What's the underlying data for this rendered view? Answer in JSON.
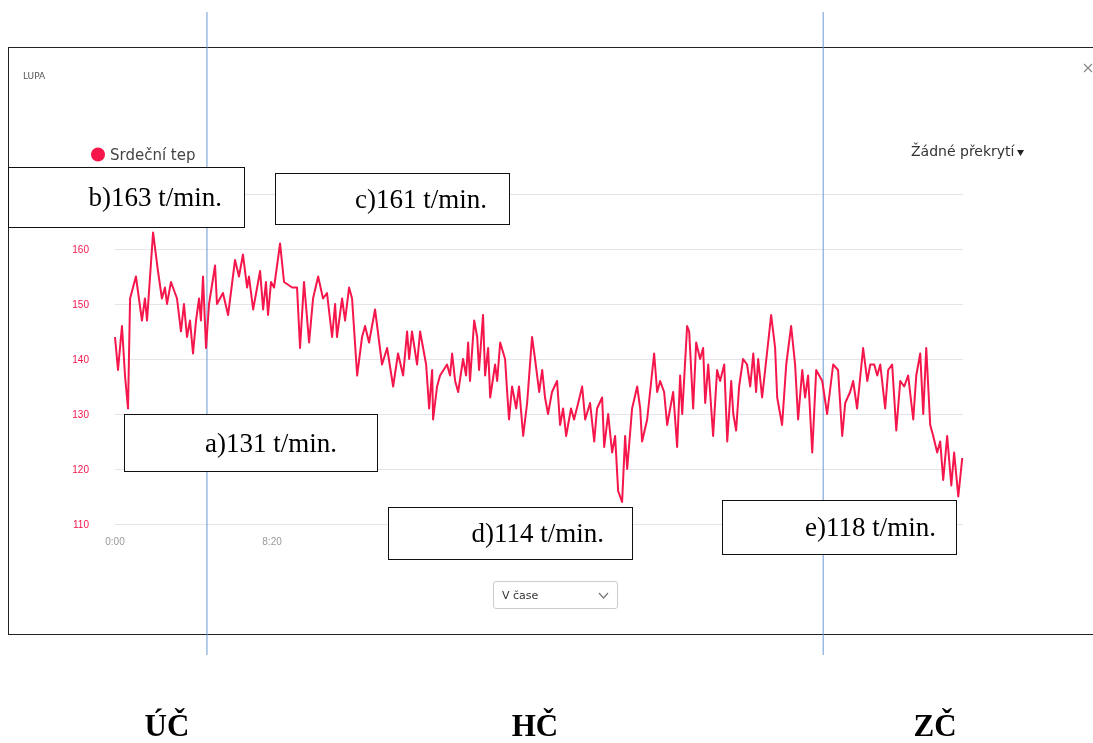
{
  "chart_data": {
    "type": "line",
    "title": "LUPA",
    "x": [
      0,
      0.16,
      0.37,
      0.53,
      0.69,
      0.8,
      1.11,
      1.27,
      1.43,
      1.59,
      1.7,
      2.02,
      2.28,
      2.49,
      2.65,
      2.76,
      2.97,
      3.29,
      3.5,
      3.66,
      3.82,
      3.98,
      4.14,
      4.3,
      4.46,
      4.56,
      4.67,
      4.83,
      4.99,
      5.31,
      5.41,
      5.73,
      6,
      6.37,
      6.58,
      6.79,
      7.01,
      7.11,
      7.33,
      7.7,
      7.86,
      8.01,
      8.12,
      8.28,
      8.44,
      8.76,
      8.97,
      9.4,
      9.66,
      9.82,
      10.03,
      10.3,
      10.51,
      10.78,
      11.04,
      11.25,
      11.52,
      11.68,
      11.78,
      12.05,
      12.21,
      12.42,
      12.58,
      12.85,
      13.11,
      13.27,
      13.48,
      13.8,
      14.17,
      14.44,
      14.76,
      15.02,
      15.29,
      15.5,
      15.61,
      15.76,
      16.03,
      16.19,
      16.51,
      16.67,
      16.83,
      16.88,
      17.09,
      17.25,
      17.62,
      17.78,
      17.89,
      18.05,
      18.21,
      18.47,
      18.63,
      18.74,
      18.84,
      19.06,
      19.22,
      19.32,
      19.53,
      19.64,
      19.8,
      19.91,
      20.17,
      20.28,
      20.44,
      20.7,
      20.81,
      20.91,
      21.07,
      21.29,
      21.44,
      21.66,
      21.87,
      22.13,
      22.29,
      22.51,
      22.67,
      22.82,
      22.98,
      23.19,
      23.46,
      23.62,
      23.78,
      23.94,
      24.2,
      24.36,
      24.58,
      24.79,
      24.95,
      25.21,
      25.43,
      25.58,
      25.85,
      25.96,
      26.17,
      26.38,
      26.54,
      26.7,
      26.91,
      27.07,
      27.18,
      27.44,
      27.71,
      27.87,
      27.97,
      28.24,
      28.61,
      28.77,
      28.93,
      29.14,
      29.3,
      29.62,
      29.83,
      29.99,
      30.1,
      30.36,
      30.47,
      30.68,
      30.84,
      31.05,
      31.21,
      31.32,
      31.48,
      31.74,
      31.95,
      32.11,
      32.33,
      32.49,
      32.7,
      32.81,
      32.96,
      33.12,
      33.33,
      33.54,
      33.71,
      33.87,
      34.02,
      34.13,
      34.34,
      34.5,
      34.82,
      35.03,
      35.14,
      35.4,
      35.62,
      35.88,
      36.09,
      36.25,
      36.47,
      36.62,
      36.78,
      37,
      37.21,
      37.53,
      37.79,
      38.11,
      38.37,
      38.59,
      38.75,
      39.01,
      39.17,
      39.38,
      39.7,
      39.92,
      40.08,
      40.29,
      40.45,
      40.61,
      40.87,
      41.03,
      41.24,
      41.46,
      41.67,
      41.88,
      42.09,
      42.36,
      42.52,
      42.73,
      42.89,
      43.05,
      43.26,
      43.42,
      43.63,
      43.79,
      43.95,
      44.16,
      44.38,
      44.53,
      44.75,
      44.96
    ],
    "series": [
      {
        "name": "Srdeční tep",
        "color": "#f5174b",
        "values": [
          144,
          138,
          146,
          137,
          131,
          151,
          155,
          151,
          147,
          151,
          147,
          163,
          156,
          151,
          153,
          150,
          154,
          151,
          145,
          150,
          144,
          147,
          141,
          147,
          151,
          147,
          155,
          142,
          150,
          157,
          150,
          152,
          148,
          158,
          155,
          159,
          153,
          155,
          149,
          156,
          149,
          154,
          148,
          154,
          153,
          161,
          154,
          153,
          153,
          142,
          154,
          143,
          151,
          155,
          151,
          152,
          144,
          150,
          144,
          151,
          147,
          153,
          151,
          137,
          144,
          146,
          143,
          149,
          139,
          142,
          135,
          141,
          137,
          145,
          140,
          145,
          139,
          145,
          139,
          131,
          138,
          129,
          135,
          137,
          139,
          137,
          141,
          136,
          134,
          140,
          137,
          143,
          136,
          147,
          144,
          138,
          148,
          137,
          142,
          133,
          139,
          136,
          143,
          140,
          134,
          129,
          135,
          131,
          135,
          126,
          132,
          144,
          140,
          134,
          138,
          133,
          130,
          134,
          136,
          128,
          131,
          126,
          131,
          129,
          132,
          135,
          129,
          132,
          125,
          131,
          133,
          124,
          130,
          123,
          126,
          116,
          114,
          126,
          120,
          131,
          135,
          131,
          125,
          129,
          141,
          134,
          136,
          134,
          128,
          134,
          124,
          137,
          130,
          146,
          145,
          131,
          143,
          140,
          142,
          132,
          139,
          126,
          138,
          136,
          139,
          125,
          136,
          130,
          127,
          135,
          140,
          139,
          135,
          141,
          134,
          140,
          133,
          138,
          148,
          142,
          133,
          128,
          139,
          146,
          139,
          129,
          138,
          133,
          137,
          123,
          138,
          136,
          130,
          139,
          138,
          126,
          132,
          134,
          136,
          131,
          142,
          136,
          139,
          139,
          137,
          139,
          131,
          138,
          139,
          127,
          136,
          135,
          137,
          129,
          137,
          141,
          130,
          142,
          128,
          126,
          123,
          125,
          118,
          126,
          117,
          123,
          115,
          122
        ]
      }
    ],
    "xlim": [
      0,
      45
    ],
    "xticks": [
      {
        "value": 0,
        "label": "0:00"
      },
      {
        "value": 8.333,
        "label": "8:20"
      }
    ],
    "ylim": [
      110,
      170
    ],
    "yticks": [
      110,
      120,
      130,
      140,
      150,
      160,
      {
        "value": 170,
        "label": null
      }
    ],
    "grid": "y",
    "legend": "top left",
    "marker": "none",
    "ref_lines": [
      {
        "axis": "x",
        "value": 4.88,
        "color": "#6a9bd1"
      },
      {
        "axis": "x",
        "value": 37.58,
        "color": "#6a9bd1"
      }
    ],
    "annotations": [
      "a)131 t/min.",
      "b)163 t/min.",
      "c)161 t/min.",
      "d)114 t/min.",
      "e)118 t/min.",
      "Žádné překrytí",
      "V čase",
      "ÚČ",
      "HČ",
      "ZČ"
    ]
  }
}
